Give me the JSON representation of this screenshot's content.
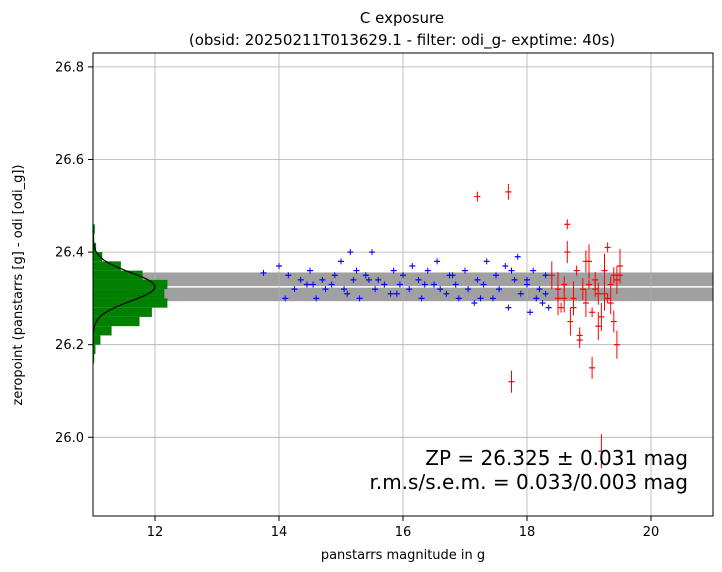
{
  "chart_data": {
    "type": "scatter",
    "title_line1": "C exposure",
    "title_line2": "(obsid: 20250211T013629.1 - filter: odi_g- exptime: 40s)",
    "xlabel": "panstarrs magnitude in g",
    "ylabel": "zeropoint (panstarrs [g] - odi [odi_g])",
    "xlim": [
      11.0,
      21.0
    ],
    "ylim": [
      25.83,
      26.83
    ],
    "grid": true,
    "x_ticks": [
      "12",
      "14",
      "16",
      "18",
      "20"
    ],
    "y_ticks": [
      "26.0",
      "26.2",
      "26.4",
      "26.6",
      "26.8"
    ],
    "zp": 26.325,
    "zp_err": 0.031,
    "rms": 0.033,
    "sem": 0.003,
    "annotation_line1": "ZP = 26.325 ± 0.031 mag",
    "annotation_line2": "r.m.s/s.e.m. = 0.033/0.003 mag",
    "colors": {
      "good": "#0000ff",
      "rejected": "#ff0000",
      "band": "#a0a0a0",
      "hist": "#008000",
      "zp_line": "#ffffff",
      "grid": "#b0b0b0"
    },
    "histogram": {
      "bin_edges": [
        26.16,
        26.18,
        26.2,
        26.22,
        26.24,
        26.26,
        26.28,
        26.3,
        26.32,
        26.34,
        26.36,
        26.38,
        26.4,
        26.42,
        26.44,
        26.46
      ],
      "widths_mag": [
        0.02,
        0.04,
        0.12,
        0.3,
        0.75,
        0.95,
        1.2,
        1.15,
        1.2,
        0.8,
        0.45,
        0.15,
        0.05,
        0.02,
        0.03
      ],
      "gaussian_peak_mag": 1.0
    },
    "series": [
      {
        "status": "kept",
        "x": [
          13.75,
          14.0,
          14.15,
          14.25,
          14.35,
          14.45,
          14.5,
          14.6,
          14.7,
          14.75,
          14.85,
          14.9,
          15.0,
          15.1,
          15.15,
          15.2,
          15.25,
          15.3,
          15.4,
          15.5,
          15.55,
          15.6,
          15.7,
          15.8,
          15.85,
          15.95,
          16.0,
          16.1,
          16.15,
          16.25,
          16.3,
          16.4,
          16.5,
          16.55,
          16.6,
          16.7,
          16.75,
          16.85,
          16.9,
          17.0,
          17.05,
          17.15,
          17.2,
          17.3,
          17.35,
          17.45,
          17.5,
          17.55,
          17.65,
          17.7,
          17.8,
          17.85,
          17.9,
          18.0,
          18.05,
          18.1,
          18.15,
          18.2,
          18.25,
          18.3,
          18.35,
          14.1,
          14.55,
          15.05,
          15.45,
          15.9,
          16.35,
          16.8,
          17.25,
          17.75,
          18.0,
          18.3
        ],
        "y": [
          26.355,
          26.37,
          26.35,
          26.32,
          26.34,
          26.33,
          26.36,
          26.3,
          26.34,
          26.32,
          26.33,
          26.35,
          26.38,
          26.31,
          26.4,
          26.34,
          26.36,
          26.3,
          26.35,
          26.4,
          26.32,
          26.34,
          26.33,
          26.31,
          26.36,
          26.33,
          26.35,
          26.32,
          26.37,
          26.34,
          26.3,
          26.36,
          26.33,
          26.38,
          26.32,
          26.31,
          26.35,
          26.33,
          26.3,
          26.36,
          26.32,
          26.29,
          26.34,
          26.33,
          26.38,
          26.3,
          26.35,
          26.32,
          26.37,
          26.28,
          26.34,
          26.39,
          26.31,
          26.33,
          26.27,
          26.36,
          26.3,
          26.32,
          26.29,
          26.35,
          26.28,
          26.3,
          26.33,
          26.32,
          26.34,
          26.31,
          26.33,
          26.35,
          26.3,
          26.36,
          26.34,
          26.31
        ]
      },
      {
        "status": "rejected",
        "x": [
          17.2,
          17.7,
          17.75,
          18.4,
          18.5,
          18.55,
          18.6,
          18.65,
          18.7,
          18.75,
          18.8,
          18.85,
          18.9,
          18.95,
          19.0,
          19.05,
          19.1,
          19.15,
          19.2,
          19.25,
          19.3,
          19.35,
          19.4,
          19.45,
          19.5,
          18.65,
          18.85,
          19.05,
          19.15,
          19.2,
          19.3,
          19.4,
          18.95,
          18.6,
          19.25,
          18.75,
          19.1,
          19.35,
          19.45,
          18.5,
          19.0,
          19.5
        ],
        "y": [
          26.52,
          26.53,
          26.12,
          26.35,
          26.3,
          26.28,
          26.33,
          26.4,
          26.25,
          26.3,
          26.36,
          26.22,
          26.32,
          26.29,
          26.38,
          26.27,
          26.34,
          26.31,
          26.26,
          26.36,
          26.3,
          26.33,
          26.25,
          26.34,
          26.37,
          26.46,
          26.21,
          26.15,
          26.24,
          25.97,
          26.41,
          26.35,
          26.38,
          26.3,
          26.31,
          26.28,
          26.32,
          26.29,
          26.2,
          26.32,
          26.33,
          26.35
        ]
      }
    ]
  }
}
